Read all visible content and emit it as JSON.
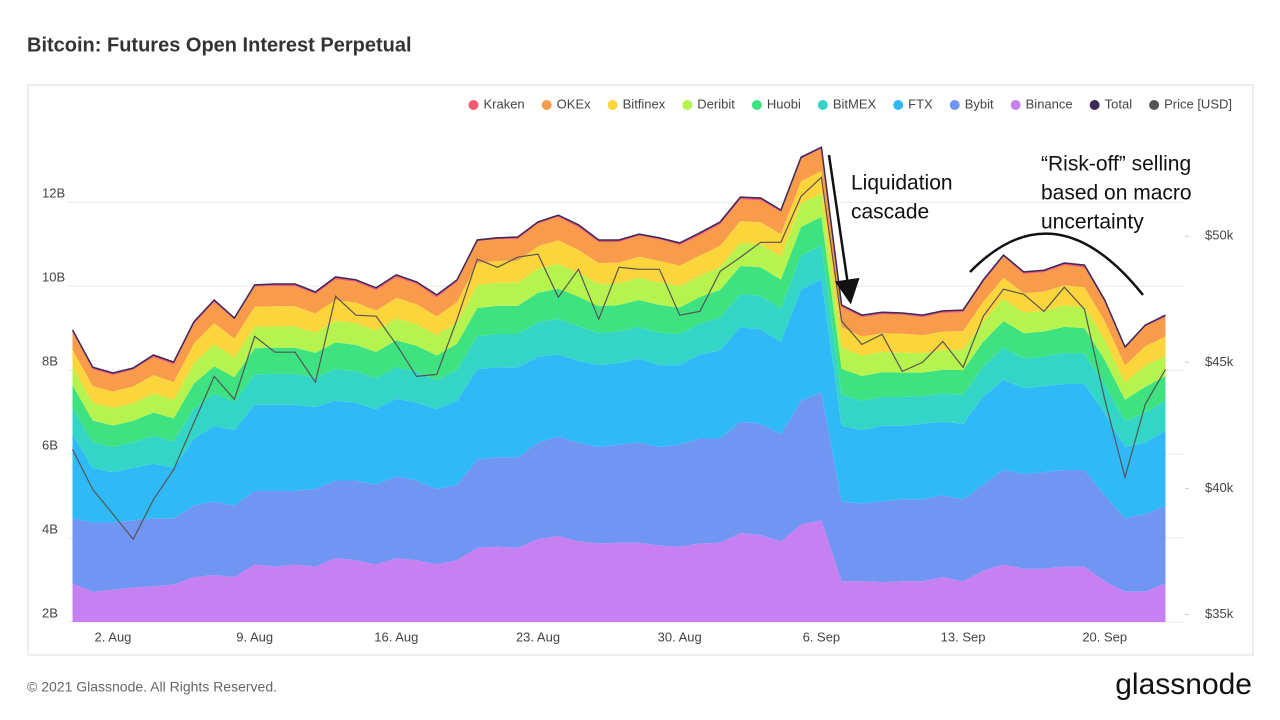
{
  "chart_data": {
    "type": "area",
    "stacked": true,
    "title": "Bitcoin: Futures Open Interest Perpetual",
    "watermark": "glassnode",
    "footer": "© 2021 Glassnode. All Rights Reserved.",
    "logo": "glassnode",
    "categories": [
      null,
      null,
      "2. Aug",
      null,
      null,
      null,
      null,
      null,
      null,
      "9. Aug",
      null,
      null,
      null,
      null,
      null,
      null,
      "16. Aug",
      null,
      null,
      null,
      null,
      null,
      null,
      "23. Aug",
      null,
      null,
      null,
      null,
      null,
      null,
      "30. Aug",
      null,
      null,
      null,
      null,
      null,
      null,
      "6. Sep",
      null,
      null,
      null,
      null,
      null,
      null,
      "13. Sep",
      null,
      null,
      null,
      null,
      null,
      null,
      "20. Sep",
      null,
      null,
      null
    ],
    "ylim": [
      2,
      14.1
    ],
    "yticks": [
      {
        "value": 2,
        "label": "2B"
      },
      {
        "value": 4,
        "label": "4B"
      },
      {
        "value": 6,
        "label": "6B"
      },
      {
        "value": 8,
        "label": "8B"
      },
      {
        "value": 10,
        "label": "10B"
      },
      {
        "value": 12,
        "label": "12B"
      }
    ],
    "y2lim": [
      34700,
      54850
    ],
    "y2ticks": [
      {
        "value": 35000,
        "label": "$35k"
      },
      {
        "value": 40000,
        "label": "$40k"
      },
      {
        "value": 45000,
        "label": "$45k"
      },
      {
        "value": 50000,
        "label": "$50k"
      }
    ],
    "grid": true,
    "legend": "top-right",
    "series": [
      {
        "name": "Kraken",
        "type": "area",
        "color": "#f25a72",
        "values": [
          0.05,
          0.05,
          0.05,
          0.05,
          0.05,
          0.05,
          0.05,
          0.05,
          0.05,
          0.05,
          0.05,
          0.05,
          0.05,
          0.05,
          0.05,
          0.05,
          0.05,
          0.05,
          0.05,
          0.05,
          0.05,
          0.05,
          0.05,
          0.05,
          0.05,
          0.05,
          0.05,
          0.05,
          0.05,
          0.05,
          0.05,
          0.05,
          0.05,
          0.05,
          0.05,
          0.05,
          0.05,
          0.05,
          0.05,
          0.05,
          0.05,
          0.05,
          0.05,
          0.05,
          0.05,
          0.05,
          0.05,
          0.05,
          0.05,
          0.05,
          0.05,
          0.05,
          0.05,
          0.05,
          0.05
        ]
      },
      {
        "name": "OKEx",
        "type": "area",
        "color": "#f89c4c",
        "values": [
          0.41,
          0.4,
          0.39,
          0.4,
          0.43,
          0.42,
          0.46,
          0.5,
          0.45,
          0.48,
          0.48,
          0.48,
          0.46,
          0.49,
          0.49,
          0.48,
          0.49,
          0.48,
          0.45,
          0.48,
          0.52,
          0.52,
          0.52,
          0.54,
          0.56,
          0.54,
          0.5,
          0.49,
          0.5,
          0.51,
          0.49,
          0.48,
          0.51,
          0.52,
          0.52,
          0.53,
          0.53,
          0.53,
          0.48,
          0.46,
          0.45,
          0.45,
          0.43,
          0.44,
          0.45,
          0.46,
          0.5,
          0.46,
          0.46,
          0.48,
          0.47,
          0.45,
          0.4,
          0.47,
          0.46
        ]
      },
      {
        "name": "Bitfinex",
        "type": "area",
        "color": "#fcd53c",
        "values": [
          0.41,
          0.4,
          0.39,
          0.4,
          0.43,
          0.42,
          0.46,
          0.5,
          0.45,
          0.48,
          0.48,
          0.48,
          0.46,
          0.49,
          0.49,
          0.48,
          0.49,
          0.48,
          0.45,
          0.48,
          0.52,
          0.52,
          0.52,
          0.54,
          0.56,
          0.54,
          0.5,
          0.49,
          0.5,
          0.51,
          0.49,
          0.48,
          0.51,
          0.52,
          0.52,
          0.53,
          0.53,
          0.53,
          0.48,
          0.46,
          0.45,
          0.45,
          0.43,
          0.44,
          0.45,
          0.46,
          0.5,
          0.46,
          0.46,
          0.48,
          0.47,
          0.45,
          0.4,
          0.47,
          0.46
        ]
      },
      {
        "name": "Deribit",
        "type": "area",
        "color": "#b7f34e",
        "values": [
          0.44,
          0.42,
          0.42,
          0.42,
          0.46,
          0.44,
          0.49,
          0.53,
          0.47,
          0.51,
          0.51,
          0.51,
          0.48,
          0.52,
          0.52,
          0.51,
          0.52,
          0.51,
          0.48,
          0.51,
          0.55,
          0.55,
          0.55,
          0.57,
          0.59,
          0.57,
          0.53,
          0.52,
          0.53,
          0.54,
          0.51,
          0.51,
          0.54,
          0.55,
          0.55,
          0.56,
          0.56,
          0.56,
          0.51,
          0.48,
          0.48,
          0.48,
          0.46,
          0.47,
          0.48,
          0.49,
          0.53,
          0.49,
          0.49,
          0.51,
          0.5,
          0.48,
          0.42,
          0.5,
          0.48
        ]
      },
      {
        "name": "Huobi",
        "type": "area",
        "color": "#3ee281",
        "values": [
          0.54,
          0.52,
          0.51,
          0.51,
          0.56,
          0.54,
          0.6,
          0.65,
          0.58,
          0.62,
          0.62,
          0.62,
          0.59,
          0.64,
          0.63,
          0.62,
          0.64,
          0.62,
          0.59,
          0.62,
          0.67,
          0.67,
          0.67,
          0.7,
          0.72,
          0.7,
          0.64,
          0.63,
          0.64,
          0.66,
          0.63,
          0.63,
          0.66,
          0.67,
          0.68,
          0.68,
          0.68,
          0.68,
          0.62,
          0.59,
          0.59,
          0.58,
          0.56,
          0.57,
          0.59,
          0.6,
          0.64,
          0.6,
          0.6,
          0.62,
          0.61,
          0.58,
          0.51,
          0.61,
          0.59
        ]
      },
      {
        "name": "BitMEX",
        "type": "area",
        "color": "#33d6c6",
        "values": [
          0.63,
          0.61,
          0.6,
          0.61,
          0.66,
          0.64,
          0.71,
          0.77,
          0.68,
          0.73,
          0.74,
          0.74,
          0.7,
          0.75,
          0.75,
          0.74,
          0.75,
          0.74,
          0.69,
          0.74,
          0.79,
          0.79,
          0.79,
          0.82,
          0.85,
          0.83,
          0.76,
          0.75,
          0.76,
          0.77,
          0.74,
          0.74,
          0.78,
          0.79,
          0.8,
          0.8,
          0.81,
          0.8,
          0.74,
          0.7,
          0.69,
          0.69,
          0.66,
          0.67,
          0.69,
          0.71,
          0.76,
          0.71,
          0.7,
          0.74,
          0.72,
          0.69,
          0.61,
          0.72,
          0.7
        ]
      },
      {
        "name": "FTX",
        "type": "area",
        "color": "#2fbaf7",
        "values": [
          2.0,
          1.3,
          1.2,
          1.25,
          1.3,
          1.2,
          1.6,
          1.8,
          1.8,
          2.05,
          2.05,
          2.05,
          1.95,
          1.9,
          1.85,
          1.8,
          1.85,
          1.85,
          1.9,
          2.0,
          2.15,
          2.15,
          2.15,
          2.05,
          1.95,
          1.95,
          1.95,
          1.95,
          2.0,
          1.95,
          1.9,
          2.0,
          2.1,
          2.25,
          2.25,
          2.2,
          2.65,
          2.7,
          1.8,
          1.75,
          1.8,
          1.75,
          1.8,
          1.75,
          1.8,
          2.1,
          2.15,
          2.05,
          2.05,
          2.05,
          2.05,
          1.95,
          1.7,
          1.7,
          1.8
        ]
      },
      {
        "name": "Bybit",
        "type": "area",
        "color": "#7095f2",
        "values": [
          1.55,
          1.65,
          1.6,
          1.6,
          1.62,
          1.58,
          1.7,
          1.75,
          1.7,
          1.75,
          1.8,
          1.75,
          1.85,
          1.85,
          1.9,
          1.9,
          1.95,
          1.9,
          1.8,
          1.8,
          2.1,
          2.13,
          2.15,
          2.3,
          2.37,
          2.35,
          2.3,
          2.33,
          2.38,
          2.35,
          2.43,
          2.5,
          2.48,
          2.65,
          2.65,
          2.55,
          2.95,
          3.05,
          1.9,
          1.85,
          1.92,
          1.95,
          1.95,
          1.95,
          1.95,
          2.05,
          2.25,
          2.25,
          2.3,
          2.3,
          2.3,
          2.05,
          1.75,
          1.85,
          1.85
        ]
      },
      {
        "name": "Binance",
        "type": "area",
        "color": "#c680f2",
        "values": [
          2.92,
          2.72,
          2.77,
          2.82,
          2.85,
          2.89,
          3.07,
          3.12,
          3.07,
          3.37,
          3.32,
          3.37,
          3.32,
          3.52,
          3.47,
          3.37,
          3.52,
          3.47,
          3.37,
          3.47,
          3.77,
          3.79,
          3.77,
          3.97,
          4.05,
          3.92,
          3.87,
          3.89,
          3.89,
          3.82,
          3.79,
          3.87,
          3.89,
          4.12,
          4.07,
          3.92,
          4.32,
          4.42,
          2.97,
          2.97,
          2.95,
          2.97,
          2.97,
          3.07,
          2.97,
          3.22,
          3.37,
          3.27,
          3.27,
          3.32,
          3.32,
          2.97,
          2.72,
          2.72,
          2.92
        ]
      },
      {
        "name": "Total",
        "type": "line",
        "color": "#3a2a55",
        "values": [
          8.96,
          8.07,
          7.93,
          8.05,
          8.36,
          8.19,
          9.15,
          9.67,
          9.24,
          10.03,
          10.05,
          10.05,
          9.86,
          10.22,
          10.15,
          9.96,
          10.27,
          10.1,
          9.79,
          10.15,
          11.1,
          11.15,
          11.17,
          11.53,
          11.69,
          11.46,
          11.1,
          11.1,
          11.24,
          11.15,
          11.03,
          11.27,
          11.53,
          12.12,
          12.1,
          11.81,
          13.07,
          13.31,
          9.55,
          9.31,
          9.38,
          9.36,
          9.31,
          9.41,
          9.43,
          10.15,
          10.74,
          10.34,
          10.38,
          10.55,
          10.5,
          9.67,
          8.55,
          9.07,
          9.31
        ]
      },
      {
        "name": "Price [USD]",
        "type": "line",
        "axis": "y2",
        "color": "#555555",
        "values": [
          41550,
          39960,
          38980,
          37980,
          39560,
          40750,
          42600,
          44440,
          43530,
          46030,
          45400,
          45400,
          44210,
          47620,
          46870,
          46830,
          45710,
          44440,
          44520,
          46710,
          49090,
          48770,
          49170,
          49290,
          47580,
          48690,
          46710,
          48770,
          48690,
          48690,
          46870,
          47020,
          48610,
          49170,
          49760,
          49760,
          51590,
          52340,
          46630,
          45710,
          46110,
          44640,
          45000,
          45830,
          44800,
          46830,
          47900,
          47700,
          47020,
          47980,
          47100,
          43530,
          40440,
          43330,
          44720
        ]
      }
    ],
    "annotations": [
      {
        "lines": [
          "Liquidation",
          "cascade"
        ]
      },
      {
        "lines": [
          "“Risk-off” selling",
          "based on macro",
          "uncertainty"
        ]
      }
    ]
  }
}
